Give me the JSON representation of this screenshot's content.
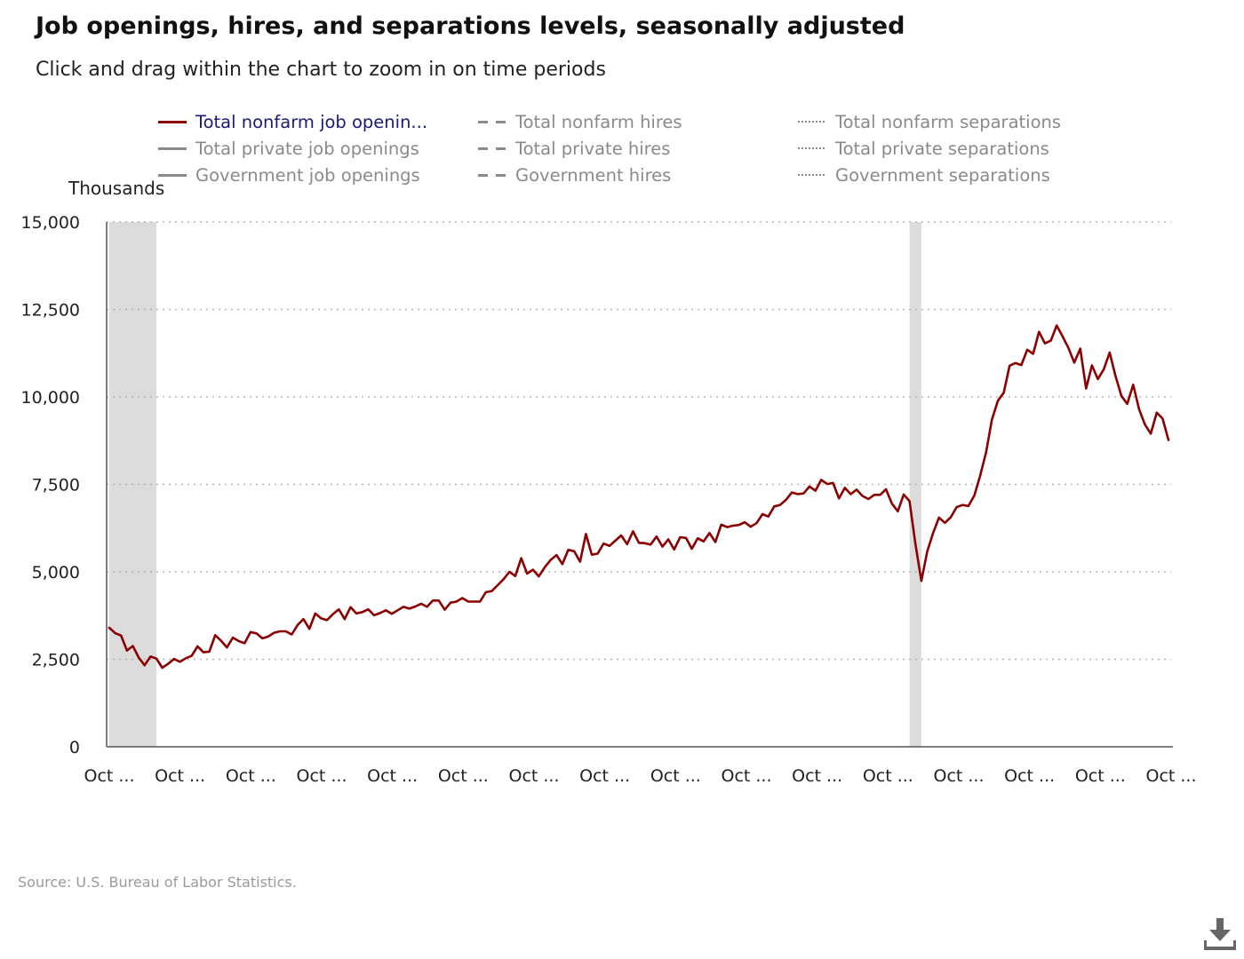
{
  "title": "Job openings, hires, and separations levels, seasonally adjusted",
  "subtitle": "Click and drag within the chart to zoom in on time periods",
  "source": "Source: U.S. Bureau of Labor Statistics.",
  "download_icon": "download-icon",
  "colors": {
    "series_main": "#8b0000",
    "legend_inactive": "#8a8a8a",
    "legend_active_text": "#1a1a7a",
    "recession": "#dcdcdc",
    "grid": "#b5b5b5"
  },
  "legend": [
    {
      "label": "Total nonfarm job openin...",
      "style": "solid",
      "color": "#8b0000",
      "active": true
    },
    {
      "label": "Total nonfarm hires",
      "style": "dashed",
      "color": "#8a8a8a",
      "active": false
    },
    {
      "label": "Total nonfarm separations",
      "style": "dotted",
      "color": "#8a8a8a",
      "active": false
    },
    {
      "label": "Total private job openings",
      "style": "solid",
      "color": "#8a8a8a",
      "active": false
    },
    {
      "label": "Total private hires",
      "style": "dashed",
      "color": "#8a8a8a",
      "active": false
    },
    {
      "label": "Total private separations",
      "style": "dotted",
      "color": "#8a8a8a",
      "active": false
    },
    {
      "label": "Government job openings",
      "style": "solid",
      "color": "#8a8a8a",
      "active": false
    },
    {
      "label": "Government hires",
      "style": "dashed",
      "color": "#8a8a8a",
      "active": false
    },
    {
      "label": "Government separations",
      "style": "dotted",
      "color": "#8a8a8a",
      "active": false
    }
  ],
  "chart_data": {
    "type": "line",
    "title": "Job openings, hires, and separations levels, seasonally adjusted",
    "ylabel": "Thousands",
    "ylim": [
      0,
      15000
    ],
    "yticks": [
      0,
      2500,
      5000,
      7500,
      10000,
      12500,
      15000
    ],
    "ytick_labels": [
      "0",
      "2,500",
      "5,000",
      "7,500",
      "10,000",
      "12,500",
      "15,000"
    ],
    "xtick_labels": [
      "Oct ...",
      "Oct ...",
      "Oct ...",
      "Oct ...",
      "Oct ...",
      "Oct ...",
      "Oct ...",
      "Oct ...",
      "Oct ...",
      "Oct ...",
      "Oct ...",
      "Oct ...",
      "Oct ...",
      "Oct ...",
      "Oct ...",
      "Oct ..."
    ],
    "grid": true,
    "legend_position": "top",
    "recession_bands": [
      [
        0,
        8
      ],
      [
        136,
        138
      ]
    ],
    "series": [
      {
        "name": "Total nonfarm job openin...",
        "values": [
          3400,
          3250,
          3180,
          2750,
          2880,
          2550,
          2330,
          2580,
          2520,
          2260,
          2370,
          2510,
          2430,
          2530,
          2600,
          2870,
          2700,
          2720,
          3190,
          3030,
          2840,
          3120,
          3020,
          2960,
          3280,
          3240,
          3100,
          3150,
          3260,
          3300,
          3300,
          3210,
          3480,
          3650,
          3370,
          3810,
          3670,
          3620,
          3790,
          3930,
          3650,
          3990,
          3810,
          3850,
          3930,
          3760,
          3820,
          3900,
          3800,
          3900,
          4000,
          3950,
          4010,
          4090,
          4000,
          4180,
          4180,
          3920,
          4120,
          4150,
          4250,
          4150,
          4150,
          4150,
          4420,
          4450,
          4620,
          4790,
          5000,
          4880,
          5390,
          4950,
          5060,
          4870,
          5130,
          5340,
          5480,
          5220,
          5630,
          5590,
          5290,
          6080,
          5490,
          5520,
          5810,
          5740,
          5890,
          6040,
          5790,
          6160,
          5830,
          5820,
          5780,
          6010,
          5720,
          5930,
          5640,
          5990,
          5970,
          5660,
          5960,
          5870,
          6110,
          5850,
          6350,
          6280,
          6320,
          6340,
          6420,
          6290,
          6390,
          6650,
          6580,
          6870,
          6910,
          7060,
          7270,
          7220,
          7240,
          7440,
          7320,
          7630,
          7510,
          7540,
          7100,
          7400,
          7220,
          7350,
          7170,
          7080,
          7200,
          7200,
          7360,
          6950,
          6730,
          7210,
          7020,
          5800,
          4740,
          5580,
          6110,
          6550,
          6400,
          6560,
          6850,
          6910,
          6880,
          7180,
          7750,
          8410,
          9350,
          9890,
          10120,
          10890,
          10970,
          10910,
          11350,
          11230,
          11860,
          11530,
          11610,
          12040,
          11730,
          11400,
          10980,
          11380,
          10240,
          10900,
          10510,
          10790,
          11270,
          10600,
          10030,
          9800,
          10350,
          9650,
          9210,
          8950,
          9550,
          9380,
          8770
        ]
      }
    ]
  }
}
